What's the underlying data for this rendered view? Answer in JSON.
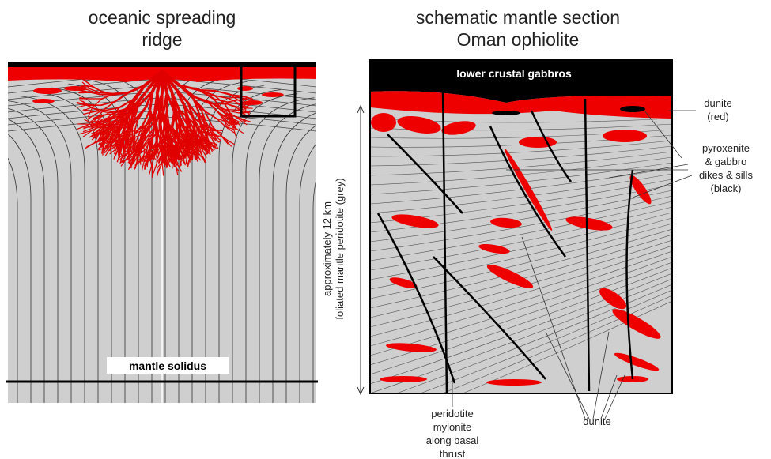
{
  "left": {
    "title_lines": [
      "oceanic spreading",
      "ridge"
    ],
    "solidus_label": "mantle solidus"
  },
  "right": {
    "title_lines": [
      "schematic mantle section",
      "Oman ophiolite"
    ],
    "top_label": "lower crustal gabbros",
    "side_label_lines": [
      "approximately 12 km",
      "foliated mantle peridotite (grey)"
    ],
    "dunite_red_lines": [
      "dunite",
      "(red)"
    ],
    "dikes_lines": [
      "pyroxenite",
      "& gabbro",
      "dikes & sills",
      "(black)"
    ],
    "mylonite_lines": [
      "peridotite",
      "mylonite",
      "along basal",
      "thrust"
    ],
    "dunite_label": "dunite"
  }
}
